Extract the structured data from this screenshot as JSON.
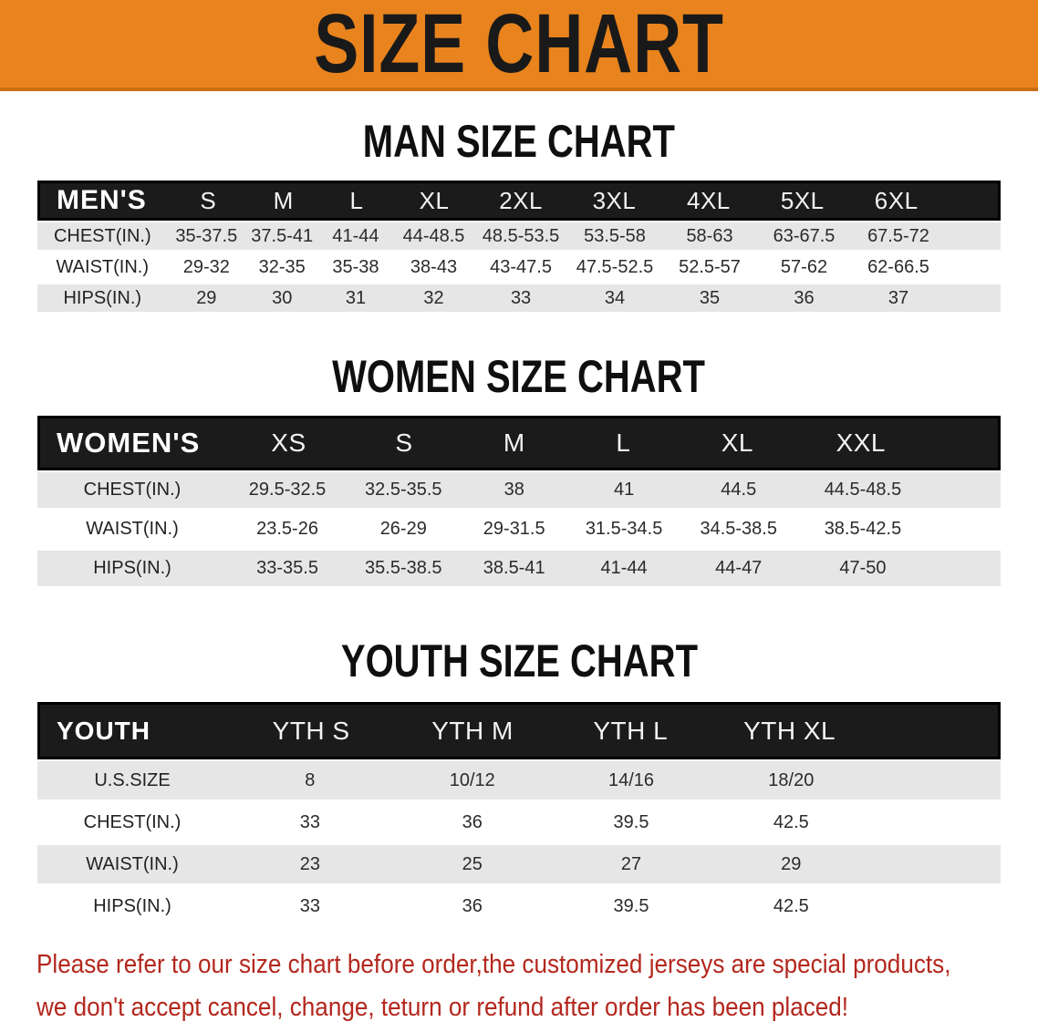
{
  "banner": {
    "title": "SIZE CHART",
    "bg_color": "#E8831D",
    "text_color": "#191919"
  },
  "men": {
    "title": "MAN SIZE CHART",
    "header": {
      "label": "MEN'S",
      "sizes": [
        "S",
        "M",
        "L",
        "XL",
        "2XL",
        "3XL",
        "4XL",
        "5XL",
        "6XL"
      ]
    },
    "rows": [
      {
        "label": "CHEST(IN.)",
        "values": [
          "35-37.5",
          "37.5-41",
          "41-44",
          "44-48.5",
          "48.5-53.5",
          "53.5-58",
          "58-63",
          "63-67.5",
          "67.5-72"
        ]
      },
      {
        "label": "WAIST(IN.)",
        "values": [
          "29-32",
          "32-35",
          "35-38",
          "38-43",
          "43-47.5",
          "47.5-52.5",
          "52.5-57",
          "57-62",
          "62-66.5"
        ]
      },
      {
        "label": "HIPS(IN.)",
        "values": [
          "29",
          "30",
          "31",
          "32",
          "33",
          "34",
          "35",
          "36",
          "37"
        ]
      }
    ]
  },
  "women": {
    "title": "WOMEN SIZE CHART",
    "header": {
      "label": "WOMEN'S",
      "sizes": [
        "XS",
        "S",
        "M",
        "L",
        "XL",
        "XXL"
      ]
    },
    "rows": [
      {
        "label": "CHEST(IN.)",
        "values": [
          "29.5-32.5",
          "32.5-35.5",
          "38",
          "41",
          "44.5",
          "44.5-48.5"
        ]
      },
      {
        "label": "WAIST(IN.)",
        "values": [
          "23.5-26",
          "26-29",
          "29-31.5",
          "31.5-34.5",
          "34.5-38.5",
          "38.5-42.5"
        ]
      },
      {
        "label": "HIPS(IN.)",
        "values": [
          "33-35.5",
          "35.5-38.5",
          "38.5-41",
          "41-44",
          "44-47",
          "47-50"
        ]
      }
    ]
  },
  "youth": {
    "title": "YOUTH SIZE CHART",
    "header": {
      "label": "YOUTH",
      "sizes": [
        "YTH S",
        "YTH M",
        "YTH L",
        "YTH XL"
      ]
    },
    "rows": [
      {
        "label": "U.S.SIZE",
        "values": [
          "8",
          "10/12",
          "14/16",
          "18/20"
        ]
      },
      {
        "label": "CHEST(IN.)",
        "values": [
          "33",
          "36",
          "39.5",
          "42.5"
        ]
      },
      {
        "label": "WAIST(IN.)",
        "values": [
          "23",
          "25",
          "27",
          "29"
        ]
      },
      {
        "label": "HIPS(IN.)",
        "values": [
          "33",
          "36",
          "39.5",
          "42.5"
        ]
      }
    ]
  },
  "disclaimer": {
    "line1": "Please refer to our size chart before order,the customized jerseys are special products,",
    "line2": "we don't accept cancel, change, teturn or refund after order has been placed!",
    "color": "#B3271D"
  }
}
